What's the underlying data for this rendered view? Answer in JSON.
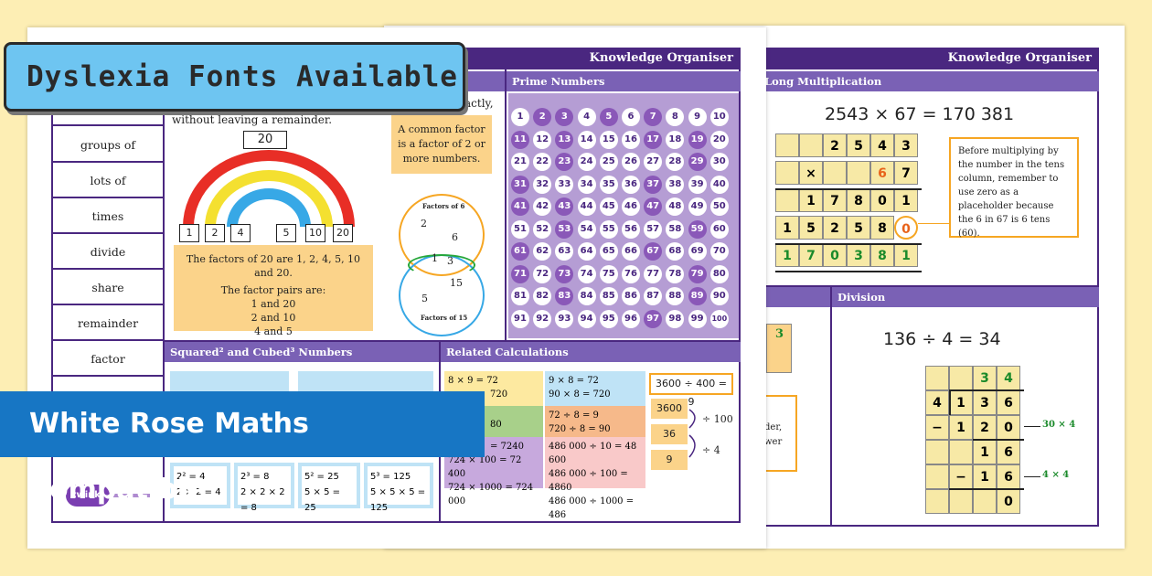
{
  "banners": {
    "top": "Dyslexia Fonts Available",
    "bottom": "White Rose Maths Compatible"
  },
  "left_sheet": {
    "header": "Knowledge Organiser",
    "vocab": [
      "groups of",
      "lots of",
      "times",
      "divide",
      "share",
      "remainder",
      "factor"
    ],
    "factors": {
      "intro_a": "actly,",
      "intro_b": "without leaving a remainder.",
      "target": "20",
      "rainbow_numbers": [
        "1",
        "2",
        "4",
        "5",
        "10",
        "20"
      ],
      "statement": "The factors of 20 are 1, 2, 4, 5, 10 and 20.",
      "pairs_title": "The factor pairs are:",
      "pairs": [
        "1 and 20",
        "2 and 10",
        "4 and 5"
      ],
      "common_factor": "A common factor is a factor of 2 or more numbers.",
      "venn_top_label": "Factors of 6",
      "venn_bottom_label": "Factors of 15",
      "venn_numbers": [
        "2",
        "6",
        "1",
        "3",
        "15",
        "5"
      ]
    },
    "prime": {
      "title": "Prime Numbers",
      "primes": [
        2,
        3,
        5,
        7,
        11,
        13,
        17,
        19,
        23,
        29,
        31,
        37,
        41,
        43,
        47,
        53,
        59,
        61,
        67,
        71,
        73,
        79,
        83,
        89,
        97
      ]
    },
    "squared": {
      "title": "Squared² and Cubed³ Numbers",
      "boxes": [
        {
          "a": "2² = 4",
          "b": "2 × 2 = 4"
        },
        {
          "a": "2³ = 8",
          "b": "2 × 2 × 2 = 8"
        },
        {
          "a": "5² = 25",
          "b": "5 × 5 = 25"
        },
        {
          "a": "5³ = 125",
          "b": "5 × 5 × 5 = 125"
        }
      ]
    },
    "related": {
      "title": "Related Calculations",
      "c1a": "8 × 9 = 72",
      "c1b": "720",
      "c2a": "9 × 8 = 72",
      "c2b": "90 × 8 = 720",
      "c3a": "80",
      "c4a": "72 ÷ 8 = 9",
      "c4b": "720 ÷ 8 = 90",
      "c5a": "= 7240",
      "c5b": "724 × 100 = 72 400",
      "c5c": "724 × 1000 = 724 000",
      "c6a": "486 000 ÷ 10 = 48 600",
      "c6b": "486 000 ÷ 100 = 4860",
      "c6c": "486 000 ÷ 1000 = 486",
      "top_eq": "3600 ÷ 400 = 9",
      "n1": "3600",
      "n2": "36",
      "n3": "9",
      "op1": "÷ 100",
      "op2": "÷ 4"
    },
    "logo": "twinkl"
  },
  "right_sheet": {
    "header": "Knowledge Organiser",
    "long_mult": {
      "title": "Long Multiplication",
      "equation": "2543 × 67 = 170 381",
      "note": "Before multiplying by the number in the tens column, remember to use zero as a placeholder because the 6 in 67 is 6 tens (60).",
      "rows": [
        [
          "",
          "",
          "2",
          "5",
          "4",
          "3"
        ],
        [
          "",
          "×",
          "",
          "",
          "6",
          "7"
        ],
        [
          "",
          "1",
          "7",
          "8",
          "0",
          "1"
        ],
        [
          "1",
          "5",
          "2",
          "5",
          "8",
          "0"
        ],
        [
          "1",
          "7",
          "0",
          "3",
          "8",
          "1"
        ]
      ]
    },
    "division": {
      "title": "Division",
      "equation": "136 ÷ 4 = 34",
      "side1": "30 × 4",
      "side2": "4 × 4",
      "partial_a": "der,",
      "partial_b": "wer",
      "partial_num": "3",
      "rows": [
        [
          "",
          "",
          "3",
          "4"
        ],
        [
          "4",
          "1",
          "3",
          "6"
        ],
        [
          "−",
          "1",
          "2",
          "0"
        ],
        [
          "",
          "",
          "1",
          "6"
        ],
        [
          "",
          "−",
          "1",
          "6"
        ],
        [
          "",
          "",
          "",
          "0"
        ]
      ]
    }
  }
}
